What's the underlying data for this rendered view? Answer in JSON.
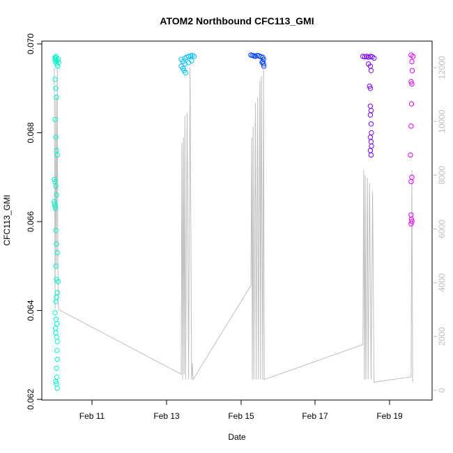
{
  "chart_data": {
    "type": "scatter",
    "title": "ATOM2 Northbound CFC113_GMI",
    "xlabel": "Date",
    "ylabel": "CFC113_GMI",
    "ylim": [
      0.062,
      0.07
    ],
    "y_ticks": [
      "0.062",
      "0.064",
      "0.066",
      "0.068",
      "0.070"
    ],
    "x_ticks": [
      "Feb 11",
      "Feb 13",
      "Feb 15",
      "Feb 17",
      "Feb 19"
    ],
    "xlim": [
      "2017-02-10",
      "2017-02-20"
    ],
    "y2lim": [
      0,
      12500
    ],
    "y2_ticks": [
      "0",
      "2000",
      "4000",
      "6000",
      "8000",
      "10000",
      "12000"
    ],
    "secondary_line_color": "#bebebe",
    "series_colors": [
      "#00f5c8",
      "#00bfff",
      "#0040ff",
      "#7a00ff",
      "#e000ff"
    ],
    "series": [
      {
        "values": [
          [
            10.1,
            0.06965
          ],
          [
            10.1,
            0.0697
          ],
          [
            10.11,
            0.0696
          ],
          [
            10.12,
            0.06968
          ],
          [
            10.13,
            0.06972
          ],
          [
            10.14,
            0.06955
          ],
          [
            10.15,
            0.06962
          ],
          [
            10.17,
            0.0695
          ],
          [
            10.18,
            0.06966
          ],
          [
            10.2,
            0.06958
          ],
          [
            10.1,
            0.0692
          ],
          [
            10.12,
            0.069
          ],
          [
            10.14,
            0.0688
          ],
          [
            10.1,
            0.0683
          ],
          [
            10.12,
            0.0679
          ],
          [
            10.14,
            0.0676
          ],
          [
            10.16,
            0.0675
          ],
          [
            10.08,
            0.06695
          ],
          [
            10.1,
            0.0669
          ],
          [
            10.12,
            0.0668
          ],
          [
            10.14,
            0.0666
          ],
          [
            10.08,
            0.06645
          ],
          [
            10.09,
            0.0664
          ],
          [
            10.1,
            0.06635
          ],
          [
            10.11,
            0.0663
          ],
          [
            10.12,
            0.0658
          ],
          [
            10.14,
            0.0655
          ],
          [
            10.16,
            0.0653
          ],
          [
            10.12,
            0.065
          ],
          [
            10.14,
            0.0647
          ],
          [
            10.18,
            0.06465
          ],
          [
            10.16,
            0.0644
          ],
          [
            10.14,
            0.0643
          ],
          [
            10.12,
            0.0642
          ],
          [
            10.1,
            0.06395
          ],
          [
            10.13,
            0.0638
          ],
          [
            10.15,
            0.0637
          ],
          [
            10.11,
            0.0636
          ],
          [
            10.12,
            0.0635
          ],
          [
            10.14,
            0.0634
          ],
          [
            10.16,
            0.0633
          ],
          [
            10.15,
            0.0631
          ],
          [
            10.16,
            0.0629
          ],
          [
            10.14,
            0.0627
          ],
          [
            10.15,
            0.0625
          ],
          [
            10.12,
            0.0624
          ],
          [
            10.14,
            0.06235
          ],
          [
            10.16,
            0.06225
          ]
        ]
      },
      {
        "values": [
          [
            13.5,
            0.06965
          ],
          [
            13.55,
            0.0696
          ],
          [
            13.6,
            0.06968
          ],
          [
            13.65,
            0.0697
          ],
          [
            13.7,
            0.06972
          ],
          [
            13.75,
            0.06973
          ],
          [
            13.8,
            0.06974
          ],
          [
            13.85,
            0.06972
          ],
          [
            13.5,
            0.0695
          ],
          [
            13.55,
            0.06945
          ],
          [
            13.6,
            0.06955
          ],
          [
            13.58,
            0.0694
          ],
          [
            13.62,
            0.06935
          ],
          [
            13.7,
            0.06958
          ],
          [
            13.78,
            0.06962
          ]
        ]
      },
      {
        "values": [
          [
            15.38,
            0.06975
          ],
          [
            15.42,
            0.06974
          ],
          [
            15.46,
            0.06973
          ],
          [
            15.5,
            0.06972
          ],
          [
            15.55,
            0.06974
          ],
          [
            15.6,
            0.06973
          ],
          [
            15.65,
            0.06971
          ],
          [
            15.7,
            0.0697
          ],
          [
            15.72,
            0.06965
          ],
          [
            15.7,
            0.0696
          ],
          [
            15.72,
            0.06955
          ],
          [
            15.73,
            0.0695
          ],
          [
            15.68,
            0.06958
          ]
        ]
      },
      {
        "values": [
          [
            18.4,
            0.06972
          ],
          [
            18.45,
            0.06971
          ],
          [
            18.5,
            0.06972
          ],
          [
            18.55,
            0.0697
          ],
          [
            18.6,
            0.06972
          ],
          [
            18.65,
            0.06971
          ],
          [
            18.7,
            0.06968
          ],
          [
            18.55,
            0.06955
          ],
          [
            18.6,
            0.0695
          ],
          [
            18.62,
            0.0694
          ],
          [
            18.58,
            0.06905
          ],
          [
            18.6,
            0.069
          ],
          [
            18.6,
            0.0686
          ],
          [
            18.62,
            0.0685
          ],
          [
            18.6,
            0.0684
          ],
          [
            18.62,
            0.0682
          ],
          [
            18.63,
            0.068
          ],
          [
            18.6,
            0.0679
          ],
          [
            18.62,
            0.0678
          ],
          [
            18.63,
            0.0677
          ],
          [
            18.6,
            0.0676
          ],
          [
            18.62,
            0.0675
          ]
        ]
      },
      {
        "values": [
          [
            19.7,
            0.06975
          ],
          [
            19.75,
            0.06972
          ],
          [
            19.72,
            0.0696
          ],
          [
            19.73,
            0.0694
          ],
          [
            19.7,
            0.06915
          ],
          [
            19.72,
            0.0691
          ],
          [
            19.71,
            0.06865
          ],
          [
            19.7,
            0.06815
          ],
          [
            19.68,
            0.0675
          ],
          [
            19.72,
            0.067
          ],
          [
            19.7,
            0.0669
          ],
          [
            19.7,
            0.06615
          ],
          [
            19.71,
            0.06605
          ],
          [
            19.72,
            0.066
          ],
          [
            19.7,
            0.06595
          ]
        ]
      }
    ]
  }
}
